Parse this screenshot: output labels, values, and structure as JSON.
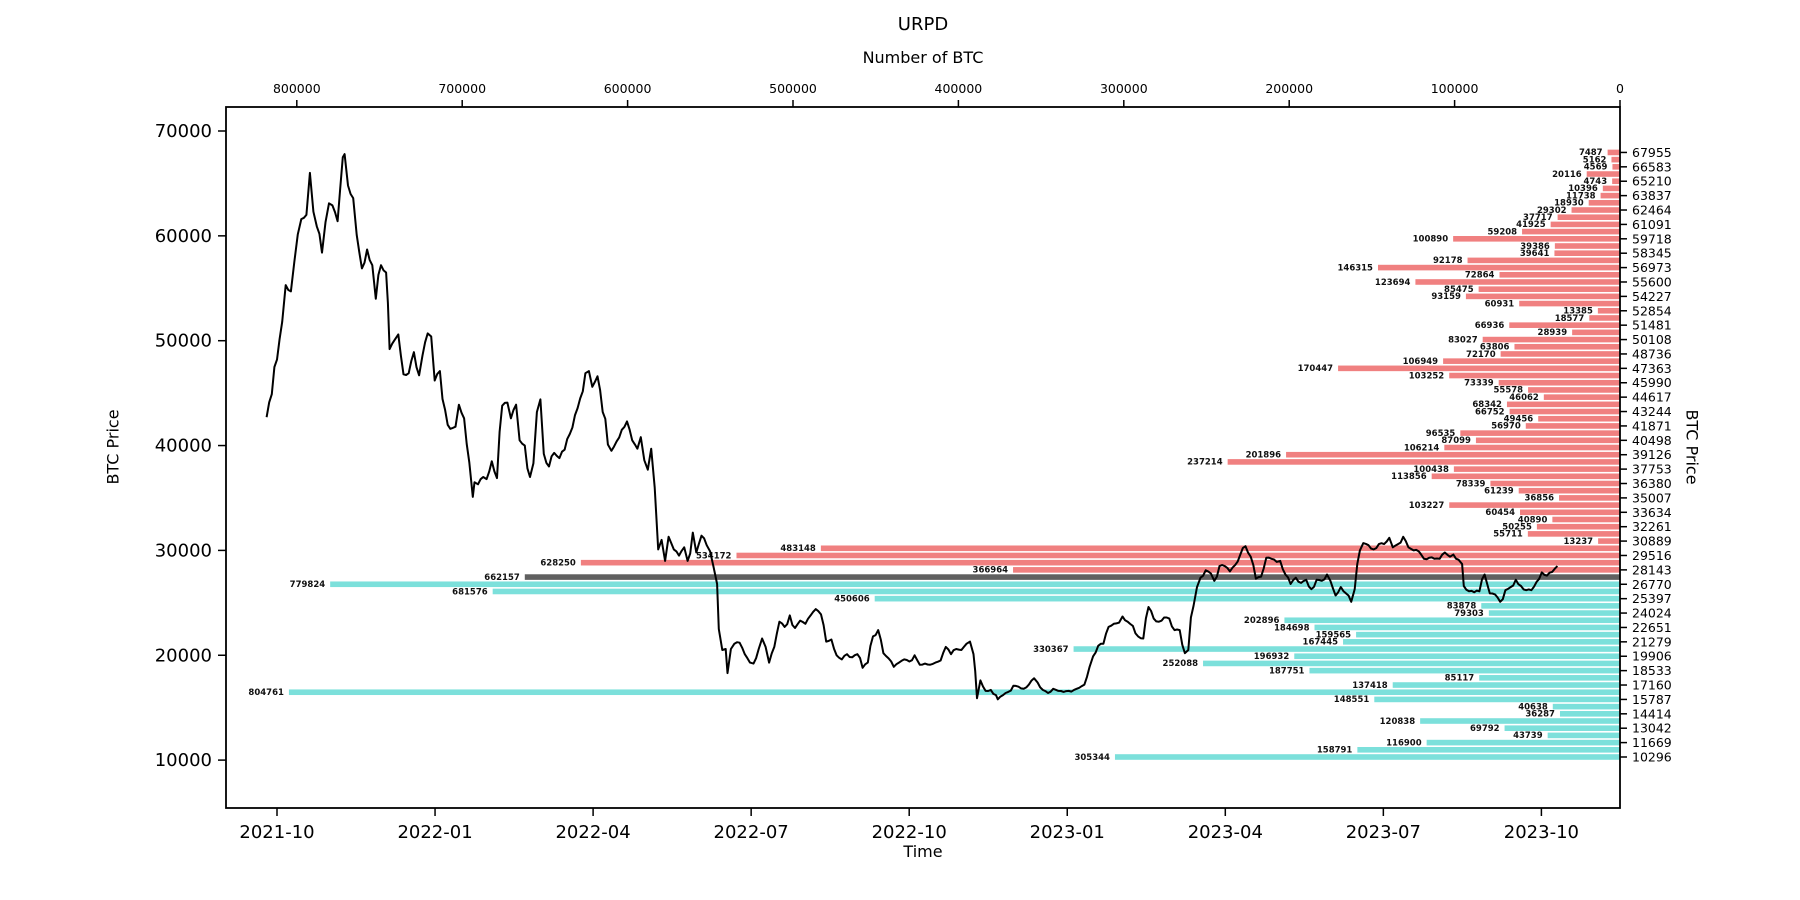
{
  "title": "URPD",
  "axes": {
    "top_label": "Number of BTC",
    "bottom_label": "Time",
    "left_label": "BTC Price",
    "right_label": "BTC Price",
    "top_ticks": [
      800000,
      700000,
      600000,
      500000,
      400000,
      300000,
      200000,
      100000,
      0
    ],
    "bottom_ticks": [
      "2021-10",
      "2022-01",
      "2022-04",
      "2022-07",
      "2022-10",
      "2023-01",
      "2023-04",
      "2023-07",
      "2023-10"
    ],
    "left_ticks": [
      70000,
      60000,
      50000,
      40000,
      30000,
      20000,
      10000
    ]
  },
  "colors": {
    "above_price": "#F08080",
    "below_price": "#7CE0DB",
    "current_bucket": "#606060",
    "price_line": "#000000",
    "axis": "#000000"
  },
  "chart_data": {
    "type": "bar",
    "orientation": "horizontal",
    "title": "URPD",
    "xlabel_top": "Number of BTC",
    "xlabel_bottom": "Time",
    "ylabel": "BTC Price",
    "x_range_btc": [
      0,
      800000
    ],
    "y_range_price": [
      10000,
      70000
    ],
    "current_price_bucket": 27456,
    "price_levels": [
      67955,
      67269,
      66583,
      65896,
      65210,
      64524,
      63837,
      63151,
      62464,
      61778,
      61091,
      60405,
      59718,
      59032,
      58345,
      57659,
      56973,
      56286,
      55600,
      54914,
      54227,
      53541,
      52854,
      52168,
      51481,
      50795,
      50108,
      49422,
      48736,
      48049,
      47363,
      46677,
      45990,
      45304,
      44617,
      43931,
      43244,
      42558,
      41871,
      41185,
      40498,
      39812,
      39126,
      38439,
      37753,
      37067,
      36380,
      35694,
      35007,
      34321,
      33634,
      32948,
      32261,
      31575,
      30889,
      30202,
      29516,
      28829,
      28143,
      27456,
      26770,
      26083,
      25397,
      24710,
      24024,
      23337,
      22651,
      21965,
      21279,
      20592,
      19906,
      19219,
      18533,
      17846,
      17160,
      16473,
      15787,
      15100,
      14414,
      13728,
      13042,
      12355,
      11669,
      10982,
      10296
    ],
    "btc_amounts": [
      7487,
      5162,
      4569,
      20116,
      4743,
      10396,
      11738,
      18930,
      29302,
      37717,
      41925,
      59208,
      100890,
      39386,
      39641,
      92178,
      146315,
      72864,
      123694,
      85475,
      93159,
      60931,
      13385,
      18577,
      66936,
      28939,
      83027,
      63806,
      72170,
      106949,
      170447,
      103252,
      73339,
      55578,
      46062,
      68342,
      66752,
      49456,
      56970,
      96535,
      87099,
      106214,
      201896,
      237214,
      100438,
      113856,
      78339,
      61239,
      36856,
      103227,
      60454,
      40890,
      50255,
      55711,
      13237,
      483148,
      534172,
      628250,
      366964,
      662157,
      779824,
      681576,
      450606,
      83878,
      79303,
      202896,
      184698,
      159565,
      167445,
      330367,
      196932,
      252088,
      187751,
      85117,
      137418,
      804761,
      148551,
      40638,
      36287,
      120838,
      69792,
      43739,
      116900,
      158791,
      305344
    ],
    "right_axis_tick_levels": [
      67955,
      66583,
      65210,
      63837,
      62464,
      61091,
      59718,
      58345,
      56973,
      55600,
      54227,
      52854,
      51481,
      50108,
      48736,
      47363,
      45990,
      44617,
      43244,
      41871,
      40498,
      39126,
      37753,
      36380,
      35007,
      33634,
      32261,
      30889,
      29516,
      28143,
      26770,
      25397,
      24024,
      22651,
      21279,
      19906,
      18533,
      17160,
      15787,
      14414,
      13042,
      11669,
      10296
    ],
    "price_line": {
      "start_date": "2021-09-25",
      "points_day_price": [
        0,
        42700,
        3,
        44900,
        6,
        48200,
        9,
        51800,
        11,
        55300,
        14,
        54700,
        16,
        57500,
        20,
        61600,
        23,
        62000,
        25,
        66000,
        27,
        62300,
        29,
        60900,
        32,
        58400,
        34,
        61300,
        36,
        63100,
        38,
        62900,
        41,
        61400,
        44,
        67500,
        45,
        67800,
        47,
        64800,
        50,
        63600,
        52,
        60100,
        55,
        56900,
        58,
        58700,
        61,
        57200,
        63,
        54000,
        66,
        57200,
        69,
        56500,
        70,
        53600,
        71,
        49200,
        74,
        50100,
        76,
        50600,
        79,
        46800,
        82,
        46900,
        85,
        48900,
        88,
        46700,
        90,
        48600,
        93,
        50700,
        95,
        50400,
        97,
        46200,
        100,
        47100,
        103,
        43400,
        106,
        41600,
        109,
        41800,
        111,
        43900,
        114,
        42600,
        117,
        38400,
        119,
        35100,
        120,
        36500,
        122,
        36300,
        125,
        37000,
        127,
        36800,
        130,
        38500,
        133,
        36900,
        136,
        43800,
        139,
        44100,
        141,
        42600,
        144,
        43900,
        146,
        40500,
        149,
        40000,
        152,
        37000,
        154,
        38300,
        156,
        43200,
        158,
        44400,
        160,
        39200,
        163,
        38000,
        166,
        39300,
        169,
        38800,
        172,
        39600,
        175,
        41100,
        178,
        42900,
        181,
        44500,
        184,
        46900,
        186,
        47100,
        188,
        45600,
        191,
        46600,
        194,
        43200,
        197,
        40100,
        199,
        39500,
        202,
        40400,
        205,
        41500,
        208,
        42300,
        211,
        40500,
        214,
        39700,
        216,
        40800,
        218,
        38600,
        220,
        37700,
        222,
        39700,
        224,
        36000,
        226,
        30100,
        228,
        31000,
        230,
        29000,
        232,
        31300,
        235,
        30100,
        238,
        29500,
        241,
        30300,
        243,
        29000,
        246,
        31700,
        248,
        29800,
        251,
        31400,
        254,
        30500,
        256,
        29900,
        258,
        28400,
        260,
        26800,
        261,
        22500,
        263,
        20500,
        265,
        20600,
        266,
        18300,
        268,
        20600,
        270,
        21100,
        273,
        21200,
        276,
        20100,
        279,
        19300,
        281,
        19200,
        284,
        20600,
        286,
        21600,
        288,
        20800,
        290,
        19300,
        293,
        20800,
        296,
        23200,
        299,
        22700,
        302,
        23800,
        305,
        22600,
        308,
        23300,
        311,
        23000,
        314,
        23800,
        317,
        24400,
        320,
        23900,
        323,
        21300,
        326,
        21500,
        329,
        20000,
        332,
        19600,
        335,
        20100,
        338,
        19800,
        341,
        20100,
        344,
        18800,
        347,
        19300,
        350,
        21800,
        353,
        22400,
        356,
        20200,
        359,
        19700,
        362,
        18900,
        365,
        19300,
        368,
        19600,
        371,
        19400,
        374,
        20000,
        377,
        19100,
        380,
        19200,
        383,
        19100,
        386,
        19300,
        389,
        19500,
        392,
        20800,
        395,
        20100,
        398,
        20600,
        401,
        20500,
        404,
        21100,
        406,
        21300,
        408,
        20100,
        409,
        18500,
        410,
        15900,
        412,
        17600,
        415,
        16600,
        418,
        16700,
        421,
        16200,
        422,
        15800,
        425,
        16200,
        428,
        16500,
        431,
        17100,
        434,
        17000,
        437,
        16800,
        440,
        17200,
        443,
        17800,
        445,
        17400,
        448,
        16700,
        451,
        16400,
        454,
        16800,
        457,
        16600,
        460,
        16500,
        463,
        16600,
        466,
        16700,
        469,
        16900,
        472,
        17200,
        475,
        18900,
        477,
        19900,
        480,
        20900,
        483,
        21100,
        486,
        22700,
        489,
        23000,
        492,
        23100,
        494,
        23700,
        497,
        23200,
        500,
        22800,
        503,
        21800,
        506,
        21600,
        509,
        24600,
        512,
        23500,
        515,
        23200,
        518,
        23600,
        521,
        23500,
        524,
        22400,
        527,
        22400,
        530,
        20200,
        532,
        20500,
        535,
        24700,
        537,
        26500,
        539,
        27400,
        542,
        28100,
        545,
        27800,
        547,
        27100,
        550,
        28500,
        553,
        28500,
        556,
        28000,
        559,
        28600,
        562,
        29600,
        565,
        30400,
        568,
        29400,
        571,
        27300,
        574,
        27500,
        577,
        29300,
        580,
        29200,
        583,
        28900,
        585,
        29000,
        588,
        27700,
        591,
        26800,
        594,
        27400,
        597,
        26900,
        600,
        27200,
        603,
        26300,
        606,
        27200,
        609,
        27100,
        612,
        27700,
        614,
        27100,
        617,
        25700,
        620,
        26500,
        623,
        25900,
        626,
        25100,
        628,
        26300,
        631,
        30000,
        633,
        30700,
        636,
        30500,
        639,
        30100,
        642,
        30600,
        645,
        30600,
        648,
        31200,
        650,
        30300,
        653,
        30600,
        656,
        31300,
        659,
        30300,
        662,
        30000,
        665,
        29900,
        668,
        29200,
        671,
        29300,
        674,
        29200,
        677,
        29200,
        680,
        29800,
        683,
        29400,
        685,
        29600,
        688,
        29100,
        690,
        28700,
        691,
        26600,
        694,
        26100,
        697,
        26000,
        700,
        26100,
        703,
        27700,
        706,
        25900,
        709,
        25800,
        712,
        25100,
        715,
        26200,
        718,
        26500,
        721,
        27200,
        724,
        26600,
        727,
        26200,
        730,
        26200,
        733,
        27000,
        736,
        27900,
        739,
        27600,
        742,
        27950,
        745,
        28500
      ]
    }
  }
}
